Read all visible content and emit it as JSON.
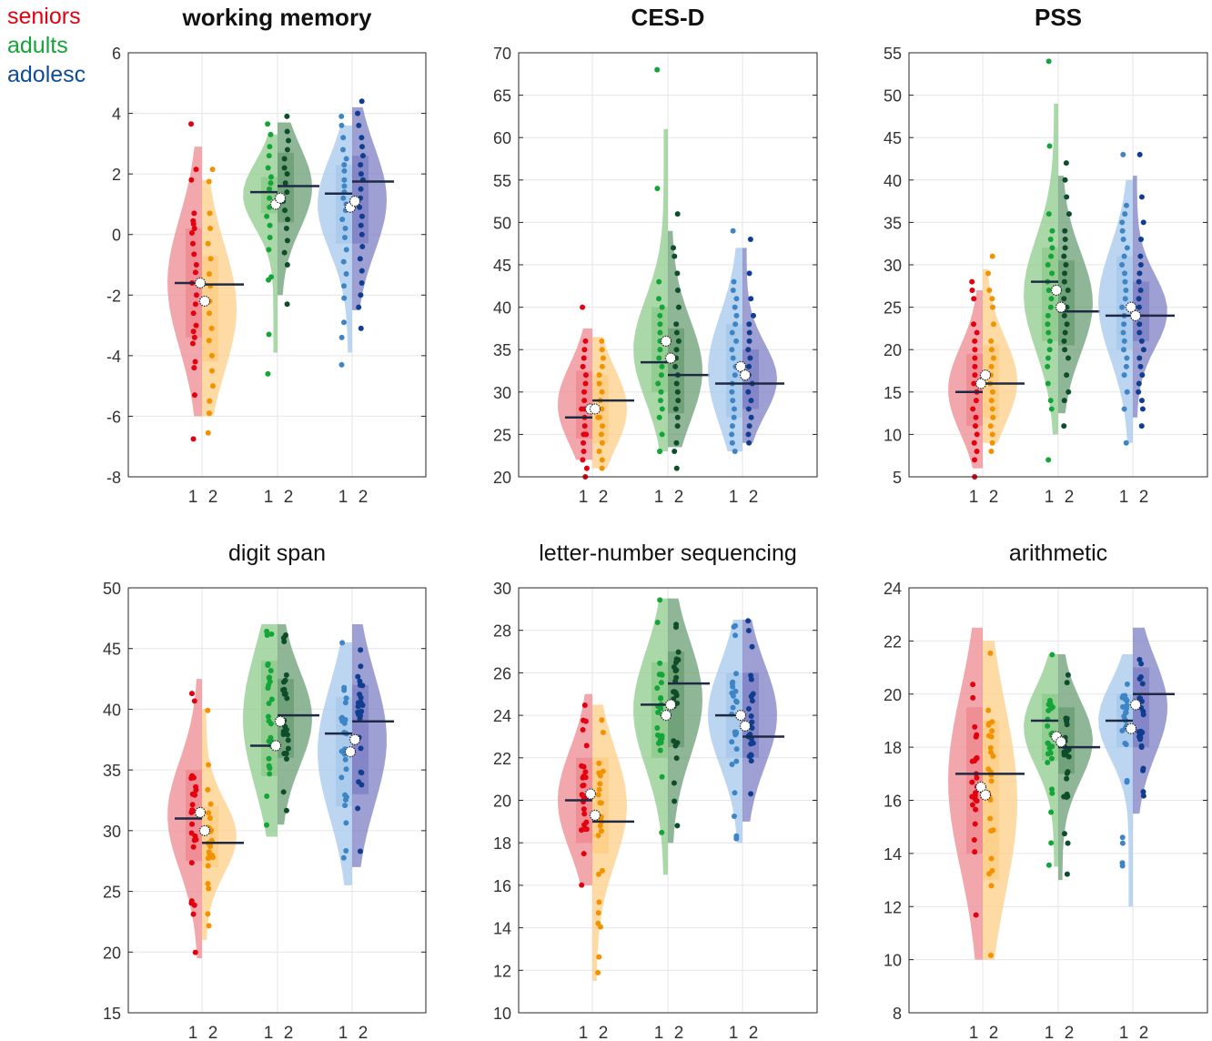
{
  "legend": [
    {
      "label": "seniors",
      "color": "#e3000f"
    },
    {
      "label": "adults",
      "color": "#13a538"
    },
    {
      "label": "adolesc",
      "color": "#0f4c9a"
    }
  ],
  "colors": {
    "seniors": {
      "t1": "#e3000f",
      "t2": "#f39200",
      "half1": "#ee8a90",
      "half2": "#fdcd85"
    },
    "adults": {
      "t1": "#13a538",
      "t2": "#0d4d2a",
      "half1": "#8ecb8c",
      "half2": "#6a9e73"
    },
    "adolesc": {
      "t1": "#3d85c6",
      "t2": "#0f3e91",
      "half1": "#a6c8ec",
      "half2": "#7d7fc4"
    }
  },
  "chart_data": [
    {
      "type": "violin",
      "title": "working memory",
      "bold_title": true,
      "ylim": [
        -8,
        6
      ],
      "yticks": [
        -8,
        -6,
        -4,
        -2,
        0,
        2,
        4,
        6
      ],
      "group_ticks": [
        "1",
        "2"
      ],
      "groups": [
        {
          "name": "seniors",
          "median1": -1.6,
          "median2": -1.65,
          "mean1": -1.6,
          "mean2": -2.2,
          "q1_1": -3.4,
          "q3_1": 0.2,
          "q1_2": -4.2,
          "q3_2": -0.7,
          "min1": -6.0,
          "max1": 2.9,
          "min2": -6.0,
          "max2": 1.8,
          "points1": [
            3.65,
            2.15,
            1.8,
            0.7,
            0.45,
            0.35,
            0.2,
            0.05,
            -0.3,
            -0.65,
            -1.0,
            -1.25,
            -1.6,
            -2.0,
            -2.3,
            -2.6,
            -3.0,
            -3.2,
            -3.4,
            -3.6,
            -4.2,
            -4.4,
            -5.3,
            -6.75
          ],
          "points2": [
            2.15,
            1.75,
            0.7,
            0.2,
            -0.3,
            -0.8,
            -1.3,
            -1.7,
            -2.2,
            -2.6,
            -3.1,
            -3.5,
            -4.0,
            -4.5,
            -5.0,
            -5.5,
            -5.9,
            -6.55
          ]
        },
        {
          "name": "adults",
          "median1": 1.4,
          "median2": 1.6,
          "mean1": 1.0,
          "mean2": 1.2,
          "q1_1": 0.7,
          "q3_1": 1.9,
          "q1_2": 0.4,
          "q3_2": 2.7,
          "min1": -3.9,
          "max1": 3.3,
          "min2": -2.0,
          "max2": 3.7,
          "points1": [
            3.65,
            3.3,
            2.9,
            2.6,
            2.2,
            1.9,
            1.7,
            1.5,
            1.2,
            0.9,
            0.6,
            0.3,
            -0.1,
            -0.5,
            -1.4,
            -1.5,
            -3.3,
            -4.6
          ],
          "points2": [
            3.9,
            3.4,
            3.1,
            2.8,
            2.5,
            2.2,
            2.0,
            1.7,
            1.4,
            1.1,
            0.8,
            0.5,
            0.2,
            -0.2,
            -0.6,
            -1.0,
            -2.3
          ]
        },
        {
          "name": "adolesc",
          "median1": 1.35,
          "median2": 1.75,
          "mean1": 0.9,
          "mean2": 1.1,
          "q1_1": -0.3,
          "q3_1": 2.3,
          "q1_2": -0.3,
          "q3_2": 2.6,
          "min1": -3.9,
          "max1": 3.6,
          "min2": -2.5,
          "max2": 4.2,
          "points1": [
            3.9,
            3.6,
            3.2,
            2.8,
            2.5,
            2.3,
            2.1,
            1.8,
            1.6,
            1.4,
            1.2,
            1.0,
            0.8,
            0.5,
            0.2,
            -0.1,
            -0.5,
            -0.9,
            -1.3,
            -1.7,
            -2.1,
            -2.9,
            -3.4,
            -4.3
          ],
          "points2": [
            4.4,
            4.0,
            3.6,
            3.2,
            2.9,
            2.6,
            2.3,
            2.0,
            1.8,
            1.5,
            1.2,
            0.9,
            0.6,
            0.3,
            0.0,
            -0.4,
            -0.8,
            -1.2,
            -1.6,
            -2.0,
            -2.4,
            -3.1
          ]
        }
      ]
    },
    {
      "type": "violin",
      "title": "CES-D",
      "bold_title": true,
      "ylim": [
        20,
        70
      ],
      "yticks": [
        20,
        25,
        30,
        35,
        40,
        45,
        50,
        55,
        60,
        65,
        70
      ],
      "group_ticks": [
        "1",
        "2"
      ],
      "groups": [
        {
          "name": "seniors",
          "median1": 27,
          "median2": 29,
          "mean1": 28,
          "mean2": 28,
          "q1_1": 24.5,
          "q3_1": 32.5,
          "q1_2": 24,
          "q3_2": 32,
          "min1": 22,
          "max1": 37.5,
          "min2": 21,
          "max2": 36.5,
          "points1": [
            40,
            36,
            35,
            34,
            33,
            32,
            31,
            30,
            29,
            28,
            28,
            27,
            26,
            25,
            25,
            24,
            23,
            22,
            21,
            20
          ],
          "points2": [
            36,
            35,
            34,
            33,
            32,
            31,
            30,
            29,
            28,
            27,
            27,
            26,
            25,
            24,
            23,
            22,
            21
          ]
        },
        {
          "name": "adults",
          "median1": 33.5,
          "median2": 32,
          "mean1": 36,
          "mean2": 34,
          "q1_1": 30,
          "q3_1": 40,
          "q1_2": 27.5,
          "q3_2": 37.5,
          "min1": 23,
          "max1": 61,
          "min2": 23.5,
          "max2": 49,
          "points1": [
            68,
            54,
            43,
            41,
            40,
            39,
            38,
            37,
            36,
            35,
            34,
            33,
            32,
            31,
            30,
            29,
            28,
            27,
            25,
            23,
            23
          ],
          "points2": [
            51,
            47,
            46,
            44,
            42,
            40,
            38,
            37,
            36,
            35,
            34,
            33,
            32,
            31,
            30,
            29,
            28,
            27,
            26,
            24,
            23,
            21
          ]
        },
        {
          "name": "adolesc",
          "median1": 31,
          "median2": 31,
          "mean1": 33,
          "mean2": 32,
          "q1_1": 27,
          "q3_1": 38,
          "q1_2": 28,
          "q3_2": 35,
          "min1": 23,
          "max1": 47,
          "min2": 24,
          "max2": 47,
          "points1": [
            49,
            43,
            42,
            41,
            40,
            39,
            38,
            37,
            36,
            35,
            34,
            33,
            32,
            31,
            30,
            29,
            28,
            27,
            26,
            25,
            24,
            23
          ],
          "points2": [
            48,
            44,
            41,
            39,
            38,
            37,
            36,
            35,
            34,
            33,
            32,
            31,
            30,
            29,
            28,
            27,
            26,
            25,
            24
          ]
        }
      ]
    },
    {
      "type": "violin",
      "title": "PSS",
      "bold_title": true,
      "ylim": [
        5,
        55
      ],
      "yticks": [
        5,
        10,
        15,
        20,
        25,
        30,
        35,
        40,
        45,
        50,
        55
      ],
      "group_ticks": [
        "1",
        "2"
      ],
      "groups": [
        {
          "name": "seniors",
          "median1": 15,
          "median2": 16,
          "mean1": 16,
          "mean2": 17,
          "q1_1": 11,
          "q3_1": 19.5,
          "q1_2": 12,
          "q3_2": 20.5,
          "min1": 6,
          "max1": 27,
          "min2": 9,
          "max2": 29.5,
          "points1": [
            28,
            27,
            26,
            23,
            22,
            21,
            20,
            19,
            18,
            17,
            16,
            15,
            14,
            13,
            12,
            11,
            10,
            9,
            8,
            7,
            5
          ],
          "points2": [
            31,
            29,
            27,
            26,
            25,
            23,
            21,
            20,
            19,
            18,
            17,
            16,
            15,
            14,
            13,
            12,
            11,
            10,
            9,
            8
          ]
        },
        {
          "name": "adults",
          "median1": 28,
          "median2": 24.5,
          "mean1": 27,
          "mean2": 25,
          "q1_1": 21,
          "q3_1": 32,
          "q1_2": 20.5,
          "q3_2": 30.5,
          "min1": 10,
          "max1": 49,
          "min2": 12.5,
          "max2": 40.5,
          "points1": [
            54,
            44,
            36,
            34,
            33,
            32,
            31,
            30,
            29,
            28,
            27,
            26,
            25,
            24,
            23,
            22,
            21,
            20,
            19,
            18,
            16,
            14,
            13,
            7
          ],
          "points2": [
            42,
            40,
            38,
            36,
            34,
            33,
            32,
            31,
            30,
            29,
            28,
            27,
            26,
            25,
            24,
            23,
            22,
            21,
            20,
            19,
            17,
            15,
            14,
            11
          ]
        },
        {
          "name": "adolesc",
          "median1": 24,
          "median2": 24,
          "mean1": 25,
          "mean2": 24,
          "q1_1": 20,
          "q3_1": 31,
          "q1_2": 21,
          "q3_2": 28,
          "min1": 9,
          "max1": 40,
          "min2": 12,
          "max2": 40.5,
          "points1": [
            43,
            37,
            36,
            35,
            34,
            33,
            32,
            31,
            30,
            29,
            28,
            27,
            26,
            25,
            24,
            23,
            22,
            21,
            20,
            19,
            18,
            17,
            15,
            13,
            9
          ],
          "points2": [
            43,
            38,
            35,
            33,
            31,
            30,
            29,
            28,
            27,
            26,
            25,
            24,
            23,
            22,
            21,
            20,
            19,
            18,
            17,
            16,
            15,
            14,
            13,
            11
          ]
        }
      ]
    },
    {
      "type": "violin",
      "title": "digit span",
      "bold_title": false,
      "ylim": [
        15,
        50
      ],
      "yticks": [
        15,
        20,
        25,
        30,
        35,
        40,
        45,
        50
      ],
      "group_ticks": [
        "1",
        "2"
      ],
      "groups": [
        {
          "name": "seniors",
          "median1": 31,
          "median2": 29,
          "mean1": 31.5,
          "mean2": 30,
          "q1_1": 27.5,
          "q3_1": 35,
          "q1_2": 27,
          "q3_2": 32,
          "min1": 19.5,
          "max1": 42.5,
          "min2": 21,
          "max2": 40
        },
        {
          "name": "adults",
          "median1": 37,
          "median2": 39.5,
          "mean1": 37,
          "mean2": 39,
          "q1_1": 34.5,
          "q3_1": 44,
          "q1_2": 36,
          "q3_2": 42.5,
          "min1": 29.5,
          "max1": 47,
          "min2": 30.5,
          "max2": 47
        },
        {
          "name": "adolesc",
          "median1": 38,
          "median2": 39,
          "mean1": 36.5,
          "mean2": 37.5,
          "q1_1": 32,
          "q3_1": 41,
          "q1_2": 33,
          "q3_2": 42,
          "min1": 25.5,
          "max1": 45.5,
          "min2": 27,
          "max2": 47
        }
      ]
    },
    {
      "type": "violin",
      "title": "letter-number sequencing",
      "bold_title": false,
      "ylim": [
        10,
        30
      ],
      "yticks": [
        10,
        12,
        14,
        16,
        18,
        20,
        22,
        24,
        26,
        28,
        30
      ],
      "group_ticks": [
        "1",
        "2"
      ],
      "groups": [
        {
          "name": "seniors",
          "median1": 20,
          "median2": 19,
          "mean1": 20.3,
          "mean2": 19.3,
          "q1_1": 18,
          "q3_1": 22,
          "q1_2": 17.5,
          "q3_2": 22,
          "min1": 16,
          "max1": 25,
          "min2": 11.5,
          "max2": 24.5
        },
        {
          "name": "adults",
          "median1": 24.5,
          "median2": 25.5,
          "mean1": 24,
          "mean2": 24.5,
          "q1_1": 22,
          "q3_1": 26.5,
          "q1_2": 22.5,
          "q3_2": 27,
          "min1": 16.5,
          "max1": 29.5,
          "min2": 18,
          "max2": 29.5
        },
        {
          "name": "adolesc",
          "median1": 24,
          "median2": 23,
          "mean1": 24,
          "mean2": 23.5,
          "q1_1": 22,
          "q3_1": 26,
          "q1_2": 22,
          "q3_2": 26,
          "min1": 18,
          "max1": 28.5,
          "min2": 19,
          "max2": 28.5
        }
      ]
    },
    {
      "type": "violin",
      "title": "arithmetic",
      "bold_title": false,
      "ylim": [
        8,
        24
      ],
      "yticks": [
        8,
        10,
        12,
        14,
        16,
        18,
        20,
        22,
        24
      ],
      "group_ticks": [
        "1",
        "2"
      ],
      "groups": [
        {
          "name": "seniors",
          "median1": 17,
          "median2": 17,
          "mean1": 16.5,
          "mean2": 16.2,
          "q1_1": 14,
          "q3_1": 19.5,
          "q1_2": 13,
          "q3_2": 19,
          "min1": 10,
          "max1": 22.5,
          "min2": 10,
          "max2": 22
        },
        {
          "name": "adults",
          "median1": 19,
          "median2": 18,
          "mean1": 18.4,
          "mean2": 18.2,
          "q1_1": 17.5,
          "q3_1": 20,
          "q1_2": 17,
          "q3_2": 19.5,
          "min1": 13.5,
          "max1": 21.5,
          "min2": 13,
          "max2": 21.5
        },
        {
          "name": "adolesc",
          "median1": 19,
          "median2": 20,
          "mean1": 18.7,
          "mean2": 19.6,
          "q1_1": 18,
          "q3_1": 20,
          "q1_2": 18,
          "q3_2": 21,
          "min1": 12,
          "max1": 21.5,
          "min2": 15.5,
          "max2": 22.5
        }
      ]
    }
  ]
}
